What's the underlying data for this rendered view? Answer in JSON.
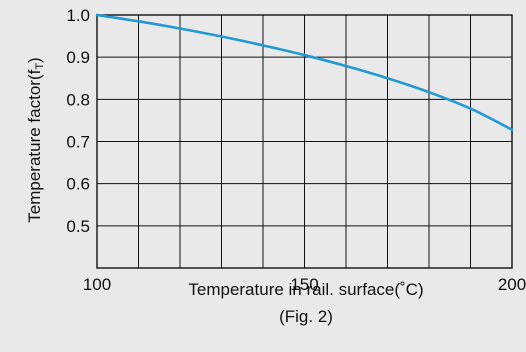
{
  "chart_data": {
    "type": "line",
    "title": "",
    "xlabel": "Temperature in rail. surface(˚C)",
    "ylabel": "Temperature factor(fT)",
    "ylabel_main": "Temperature factor(f",
    "ylabel_sub": "T",
    "ylabel_close": ")",
    "caption": "(Fig. 2)",
    "xlim": [
      100,
      200
    ],
    "ylim": [
      0.4,
      1.0
    ],
    "x_ticks": [
      100,
      150,
      200
    ],
    "y_ticks": [
      "0.5",
      "0.6",
      "0.7",
      "0.8",
      "0.9",
      "1.0"
    ],
    "grid": true,
    "series": [
      {
        "color": "#1f9ad6",
        "x": [
          100,
          110,
          120,
          130,
          140,
          150,
          160,
          170,
          180,
          190,
          200
        ],
        "y": [
          1.0,
          0.985,
          0.968,
          0.949,
          0.928,
          0.905,
          0.879,
          0.85,
          0.817,
          0.778,
          0.728
        ]
      }
    ]
  }
}
